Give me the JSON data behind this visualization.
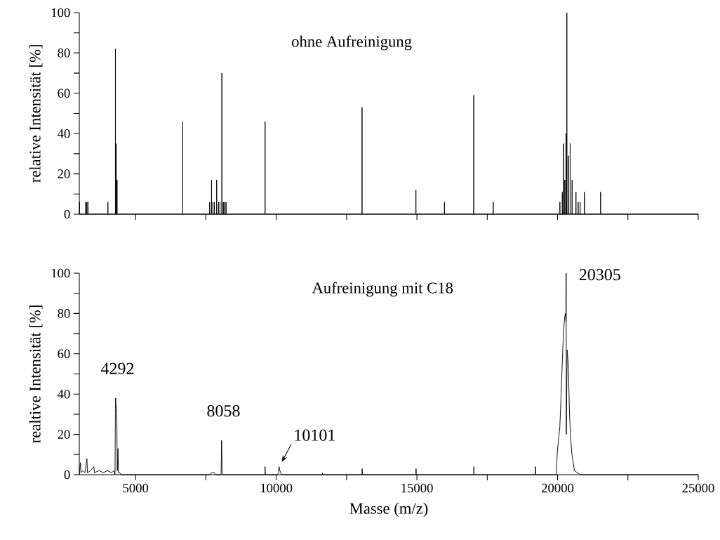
{
  "chart_data": [
    {
      "type": "line",
      "title": "ohne Aufreinigung",
      "ylabel": "relative Intensität [%]",
      "color": "#000000",
      "tick_labels": "y",
      "xlim": [
        3000,
        25000
      ],
      "ylim": [
        0,
        100
      ],
      "xticks": [
        5000,
        {
          "value": 7500,
          "label": null
        },
        10000,
        {
          "value": 12500,
          "label": null
        },
        15000,
        {
          "value": 17500,
          "label": null
        },
        20000,
        {
          "value": 22500,
          "label": null
        },
        25000
      ],
      "yticks": [
        0,
        {
          "value": 10,
          "label": null
        },
        20,
        {
          "value": 30,
          "label": null
        },
        40,
        {
          "value": 50,
          "label": null
        },
        60,
        {
          "value": 70,
          "label": null
        },
        80,
        {
          "value": 90,
          "label": null
        },
        100
      ],
      "x": [
        3000,
        3010,
        3010,
        3010,
        3230,
        3230,
        3230,
        3270,
        3270,
        3270,
        3310,
        3310,
        3310,
        4017,
        4017,
        4017,
        4284,
        4284,
        4284,
        4310,
        4310,
        4310,
        4342,
        4342,
        4342,
        6678,
        6678,
        6678,
        7633,
        7633,
        7633,
        7700,
        7700,
        7700,
        7750,
        7750,
        7750,
        7800,
        7800,
        7800,
        7883,
        7883,
        7883,
        7950,
        7950,
        7950,
        8000,
        8000,
        8000,
        8067,
        8067,
        8067,
        8120,
        8120,
        8120,
        8170,
        8170,
        8170,
        8217,
        8217,
        8217,
        9604,
        9604,
        9604,
        13050,
        13050,
        13050,
        14965,
        14965,
        14965,
        15979,
        15979,
        15979,
        17020,
        17020,
        17020,
        17713,
        17713,
        17713,
        20082,
        20082,
        20082,
        20168,
        20168,
        20168,
        20211,
        20211,
        20211,
        20256,
        20256,
        20256,
        20298,
        20298,
        20298,
        20330,
        20330,
        20330,
        20385,
        20385,
        20385,
        20447,
        20447,
        20447,
        20516,
        20516,
        20516,
        20654,
        20654,
        20654,
        20732,
        20732,
        20732,
        20801,
        20801,
        20801,
        20957,
        20957,
        20957,
        21530,
        21530,
        21530,
        25000
      ],
      "values": [
        0,
        0,
        6,
        0,
        0,
        6,
        0,
        0,
        6,
        0,
        0,
        6,
        0,
        0,
        6,
        0,
        0,
        82,
        0,
        0,
        35,
        0,
        0,
        17,
        0,
        0,
        46,
        0,
        0,
        6,
        0,
        0,
        17,
        0,
        0,
        6,
        0,
        0,
        6,
        0,
        0,
        17,
        0,
        0,
        6,
        0,
        0,
        6,
        0,
        0,
        70,
        0,
        0,
        6,
        0,
        0,
        6,
        0,
        0,
        6,
        0,
        0,
        46,
        0,
        0,
        53,
        0,
        0,
        12,
        0,
        0,
        6,
        0,
        0,
        59,
        0,
        0,
        6,
        0,
        0,
        6,
        0,
        0,
        11,
        0,
        0,
        35,
        0,
        0,
        17,
        0,
        0,
        40,
        0,
        0,
        100,
        0,
        0,
        29,
        0,
        0,
        35,
        0,
        0,
        17,
        0,
        0,
        11,
        0,
        0,
        6,
        0,
        0,
        6,
        0,
        0,
        11,
        0,
        0,
        11,
        0,
        0
      ]
    },
    {
      "type": "line",
      "title": "Aufreinigung mit C18",
      "ylabel": "realtive Intensität [%]",
      "xlabel": "Masse (m/z)",
      "color": "#000000",
      "xlim": [
        3000,
        25000
      ],
      "ylim": [
        0,
        100
      ],
      "xticks": [
        5000,
        {
          "value": 7500,
          "label": null
        },
        10000,
        {
          "value": 12500,
          "label": null
        },
        15000,
        {
          "value": 17500,
          "label": null
        },
        20000,
        {
          "value": 22500,
          "label": null
        },
        25000
      ],
      "yticks": [
        0,
        {
          "value": 10,
          "label": null
        },
        20,
        {
          "value": 30,
          "label": null
        },
        40,
        {
          "value": 50,
          "label": null
        },
        60,
        {
          "value": 70,
          "label": null
        },
        80,
        {
          "value": 90,
          "label": null
        },
        100
      ],
      "annotations": [
        {
          "text": "4292",
          "x": 4292,
          "y": 38
        },
        {
          "text": "8058",
          "x": 8058,
          "y": 17
        },
        {
          "text": "10101",
          "x": 10101,
          "y": 4
        },
        {
          "text": "20305",
          "x": 20305,
          "y": 100
        }
      ],
      "x": [
        3000,
        3038,
        3060,
        3120,
        3200,
        3270,
        3290,
        3400,
        3519,
        3540,
        3700,
        3850,
        4000,
        4150,
        4230,
        4270,
        4284,
        4292,
        4301,
        4334,
        4350,
        4376,
        4390,
        4434,
        4480,
        7650,
        7700,
        7800,
        7850,
        8040,
        8058,
        8075,
        8100,
        9600,
        9604,
        9610,
        10050,
        10080,
        10101,
        10130,
        10160,
        10200,
        11640,
        11645,
        11650,
        13050,
        13055,
        13060,
        14965,
        14970,
        14975,
        17020,
        17025,
        17030,
        19210,
        19215,
        19220,
        19948,
        19991,
        20035,
        20078,
        20121,
        20165,
        20208,
        20251,
        20280,
        20300,
        20305,
        20310,
        20340,
        20380,
        20425,
        20470,
        20512,
        20555,
        20600,
        20700,
        20815,
        25000
      ],
      "values": [
        0,
        6,
        1,
        2,
        1,
        8,
        1,
        2,
        4,
        1,
        2,
        1,
        2,
        1,
        2,
        0,
        33,
        38,
        35,
        31,
        2,
        13,
        1,
        1,
        0,
        0,
        1,
        1,
        0,
        0,
        17,
        1,
        0,
        0,
        4,
        0,
        0,
        1,
        4,
        2,
        1,
        0,
        0,
        1,
        0,
        0,
        3,
        0,
        0,
        3,
        0,
        0,
        4,
        0,
        0,
        4,
        0,
        0,
        11,
        18,
        23,
        38,
        55,
        70,
        78,
        80,
        76,
        100,
        20,
        62,
        55,
        30,
        17,
        10,
        6,
        2,
        1,
        0,
        0
      ]
    }
  ]
}
